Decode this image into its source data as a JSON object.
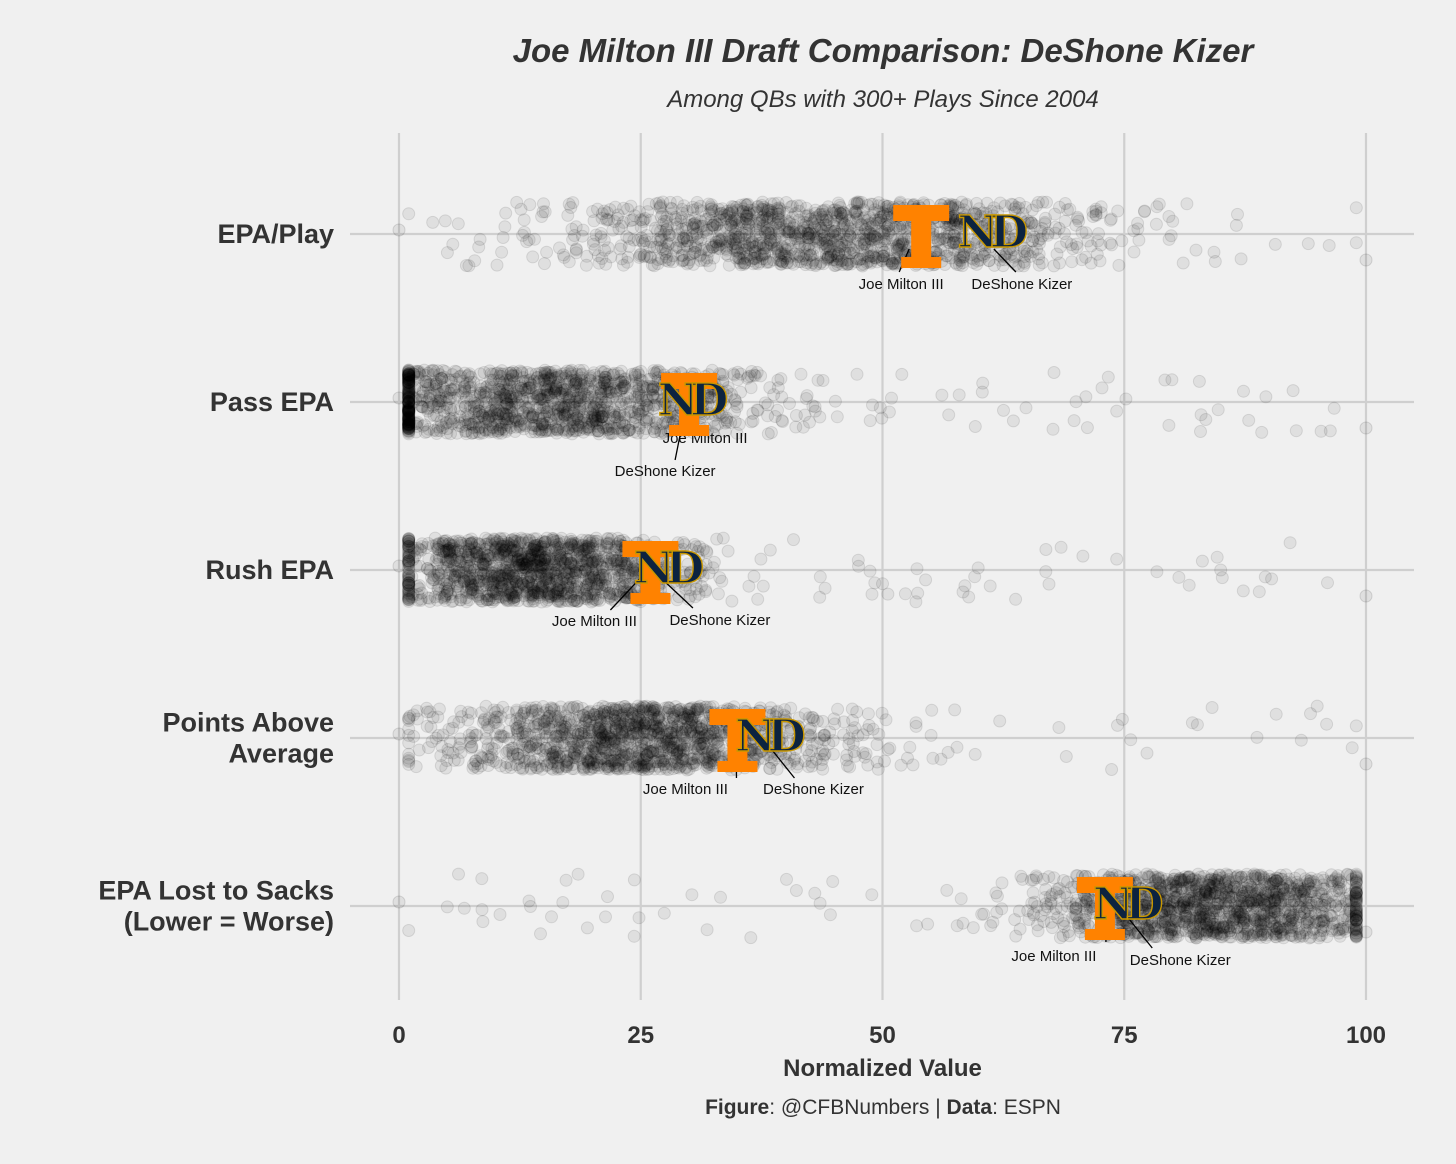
{
  "chart_data": {
    "type": "scatter",
    "title": "Joe Milton III Draft Comparison: DeShone Kizer",
    "subtitle": "Among QBs with 300+ Plays Since 2004",
    "xlabel": "Normalized Value",
    "ylabel": "",
    "xlim": [
      0,
      100
    ],
    "x_ticks": [
      "0",
      "25",
      "50",
      "75",
      "100"
    ],
    "grid": true,
    "categories": [
      "EPA/Play",
      "Pass EPA",
      "Rush EPA",
      "Points Above Average",
      "EPA Lost to Sacks (Lower = Worse)"
    ],
    "category_label_lines": [
      [
        "EPA/Play"
      ],
      [
        "Pass EPA"
      ],
      [
        "Rush EPA"
      ],
      [
        "Points Above",
        "Average"
      ],
      [
        "EPA Lost to Sacks",
        "(Lower = Worse)"
      ]
    ],
    "distribution_note": "jittered cloud of all QBs, ~1500 points per metric, translucent grey",
    "distributions": [
      {
        "metric": "EPA/Play",
        "center": 45,
        "spread": 13,
        "min": 0,
        "max": 100
      },
      {
        "metric": "Pass EPA",
        "center": 15,
        "spread": 12,
        "min": 0,
        "max": 100
      },
      {
        "metric": "Rush EPA",
        "center": 14,
        "spread": 8,
        "min": 0,
        "max": 100
      },
      {
        "metric": "Points Above Average",
        "center": 25,
        "spread": 10,
        "min": 0,
        "max": 100
      },
      {
        "metric": "EPA Lost to Sacks (Lower = Worse)",
        "center": 84,
        "spread": 9,
        "min": 0,
        "max": 100
      }
    ],
    "series": [
      {
        "name": "Joe Milton III",
        "team_logo": "tennessee-power-t-logo",
        "color": "#FF8200",
        "values": [
          54,
          30,
          26,
          35,
          73
        ]
      },
      {
        "name": "DeShone Kizer",
        "team_logo": "notre-dame-nd-logo",
        "color": "#0C2340",
        "values": [
          61,
          30,
          27.5,
          38,
          75
        ]
      }
    ],
    "annotations": [
      {
        "player": "Joe Milton III",
        "metric": "EPA/Play",
        "label": "Joe Milton III"
      },
      {
        "player": "DeShone Kizer",
        "metric": "EPA/Play",
        "label": "DeShone Kizer"
      },
      {
        "player": "Joe Milton III",
        "metric": "Pass EPA",
        "label": "Joe Milton III"
      },
      {
        "player": "DeShone Kizer",
        "metric": "Pass EPA",
        "label": "DeShone Kizer"
      },
      {
        "player": "Joe Milton III",
        "metric": "Rush EPA",
        "label": "Joe Milton III"
      },
      {
        "player": "DeShone Kizer",
        "metric": "Rush EPA",
        "label": "DeShone Kizer"
      },
      {
        "player": "Joe Milton III",
        "metric": "Points Above Average",
        "label": "Joe Milton III"
      },
      {
        "player": "DeShone Kizer",
        "metric": "Points Above Average",
        "label": "DeShone Kizer"
      },
      {
        "player": "Joe Milton III",
        "metric": "EPA Lost to Sacks (Lower = Worse)",
        "label": "Joe Milton III"
      },
      {
        "player": "DeShone Kizer",
        "metric": "EPA Lost to Sacks (Lower = Worse)",
        "label": "DeShone Kizer"
      }
    ],
    "legend": "none"
  },
  "caption": {
    "figure_label": "Figure",
    "figure_value": ": @CFBNumbers | ",
    "data_label": "Data",
    "data_value": ": ESPN"
  },
  "colors": {
    "background": "#f0f0f0",
    "grid": "#cfcfcf",
    "text": "#333333",
    "points": "#000000",
    "tennessee_orange": "#FF8200",
    "notre_dame_navy": "#0C2340",
    "notre_dame_gold": "#C99700"
  }
}
